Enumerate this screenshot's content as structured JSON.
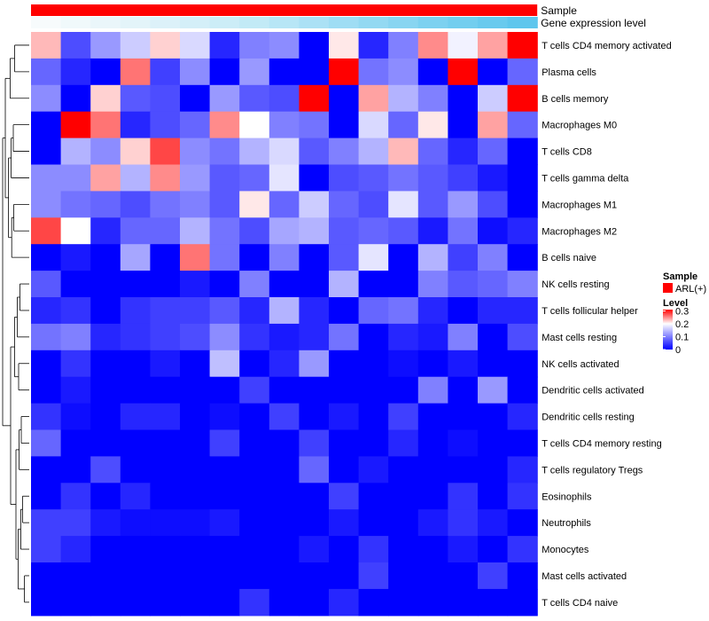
{
  "chart_data": {
    "type": "heatmap",
    "title": "",
    "annotation_labels": {
      "sample": "Sample",
      "gene": "Gene expression level"
    },
    "sample_group": "ARL(+)",
    "sample_color": "#ff0000",
    "gene_expression_gradient": [
      "#f7fbfc",
      "#e2f3f9",
      "#c9ecf7",
      "#a4dff4",
      "#7ed2f0",
      "#5fc6ed"
    ],
    "rows": [
      "T cells CD4 memory activated",
      "Plasma cells",
      "B cells memory",
      "Macrophages M0",
      "T cells CD8",
      "T cells gamma delta",
      "Macrophages M1",
      "Macrophages M2",
      "B cells naive",
      "NK cells resting",
      "T cells follicular helper",
      "Mast cells resting",
      "NK cells activated",
      "Dendritic cells activated",
      "Dendritic cells resting",
      "T cells CD4 memory resting",
      "T cells regulatory  Tregs",
      "Eosinophils",
      "Neutrophils",
      "Monocytes",
      "Mast cells activated",
      "T cells CD4 naive"
    ],
    "values": [
      [
        0.23,
        0.06,
        0.12,
        0.16,
        0.22,
        0.17,
        0.03,
        0.1,
        0.11,
        0.0,
        0.21,
        0.03,
        0.1,
        0.25,
        0.19,
        0.24,
        0.31
      ],
      [
        0.08,
        0.03,
        0.0,
        0.26,
        0.05,
        0.11,
        0.0,
        0.12,
        0.0,
        0.0,
        0.31,
        0.09,
        0.11,
        0.0,
        0.31,
        0.0,
        0.08
      ],
      [
        0.11,
        0.0,
        0.22,
        0.07,
        0.06,
        0.0,
        0.12,
        0.07,
        0.06,
        0.31,
        0.0,
        0.24,
        0.14,
        0.1,
        0.0,
        0.16,
        0.31
      ],
      [
        0.0,
        0.31,
        0.26,
        0.03,
        0.06,
        0.08,
        0.25,
        0.2,
        0.1,
        0.09,
        0.0,
        0.17,
        0.08,
        0.21,
        0.0,
        0.24,
        0.08
      ],
      [
        0.0,
        0.14,
        0.11,
        0.22,
        0.28,
        0.11,
        0.09,
        0.14,
        0.17,
        0.07,
        0.1,
        0.14,
        0.23,
        0.08,
        0.03,
        0.08,
        0.0
      ],
      [
        0.11,
        0.11,
        0.24,
        0.14,
        0.25,
        0.12,
        0.07,
        0.08,
        0.18,
        0.0,
        0.06,
        0.07,
        0.09,
        0.07,
        0.05,
        0.02,
        0.0
      ],
      [
        0.11,
        0.09,
        0.08,
        0.06,
        0.09,
        0.1,
        0.07,
        0.21,
        0.08,
        0.16,
        0.08,
        0.06,
        0.18,
        0.07,
        0.12,
        0.06,
        0.0
      ],
      [
        0.28,
        0.2,
        0.03,
        0.08,
        0.08,
        0.14,
        0.09,
        0.06,
        0.13,
        0.14,
        0.07,
        0.08,
        0.07,
        0.02,
        0.09,
        0.01,
        0.03
      ],
      [
        0.0,
        0.02,
        0.0,
        0.13,
        0.0,
        0.26,
        0.09,
        0.0,
        0.1,
        0.0,
        0.07,
        0.18,
        0.0,
        0.14,
        0.05,
        0.1,
        0.0
      ],
      [
        0.07,
        0.0,
        0.0,
        0.0,
        0.0,
        0.02,
        0.0,
        0.1,
        0.0,
        0.0,
        0.14,
        0.0,
        0.0,
        0.1,
        0.07,
        0.08,
        0.1
      ],
      [
        0.03,
        0.04,
        0.0,
        0.04,
        0.05,
        0.05,
        0.07,
        0.03,
        0.14,
        0.03,
        0.0,
        0.08,
        0.09,
        0.03,
        0.0,
        0.03,
        0.03
      ],
      [
        0.09,
        0.1,
        0.03,
        0.04,
        0.05,
        0.06,
        0.11,
        0.04,
        0.02,
        0.03,
        0.09,
        0.0,
        0.03,
        0.02,
        0.1,
        0.0,
        0.06
      ],
      [
        0.0,
        0.04,
        0.0,
        0.0,
        0.02,
        0.0,
        0.15,
        0.0,
        0.03,
        0.12,
        0.0,
        0.0,
        0.01,
        0.0,
        0.02,
        0.0,
        0.0
      ],
      [
        0.0,
        0.02,
        0.0,
        0.0,
        0.0,
        0.0,
        0.0,
        0.05,
        0.0,
        0.0,
        0.0,
        0.0,
        0.0,
        0.1,
        0.0,
        0.12,
        0.0
      ],
      [
        0.04,
        0.01,
        0.0,
        0.03,
        0.03,
        0.0,
        0.01,
        0.0,
        0.05,
        0.0,
        0.02,
        0.0,
        0.05,
        0.0,
        0.0,
        0.0,
        0.03
      ],
      [
        0.08,
        0.0,
        0.0,
        0.0,
        0.0,
        0.0,
        0.05,
        0.0,
        0.0,
        0.05,
        0.0,
        0.0,
        0.03,
        0.0,
        0.01,
        0.0,
        0.0
      ],
      [
        0.0,
        0.0,
        0.06,
        0.0,
        0.0,
        0.0,
        0.0,
        0.0,
        0.0,
        0.08,
        0.0,
        0.02,
        0.0,
        0.0,
        0.0,
        0.0,
        0.03
      ],
      [
        0.0,
        0.04,
        0.0,
        0.03,
        0.0,
        0.0,
        0.0,
        0.0,
        0.0,
        0.0,
        0.05,
        0.0,
        0.0,
        0.0,
        0.04,
        0.0,
        0.04
      ],
      [
        0.05,
        0.05,
        0.02,
        0.01,
        0.01,
        0.01,
        0.02,
        0.0,
        0.0,
        0.0,
        0.02,
        0.0,
        0.0,
        0.02,
        0.04,
        0.02,
        0.0
      ],
      [
        0.05,
        0.03,
        0.0,
        0.0,
        0.0,
        0.0,
        0.0,
        0.0,
        0.0,
        0.02,
        0.0,
        0.04,
        0.0,
        0.0,
        0.02,
        0.0,
        0.04
      ],
      [
        0.0,
        0.0,
        0.0,
        0.0,
        0.0,
        0.0,
        0.0,
        0.0,
        0.0,
        0.0,
        0.0,
        0.05,
        0.0,
        0.0,
        0.0,
        0.05,
        0.0
      ],
      [
        0.0,
        0.0,
        0.0,
        0.0,
        0.0,
        0.0,
        0.0,
        0.04,
        0.0,
        0.0,
        0.03,
        0.0,
        0.0,
        0.0,
        0.0,
        0.0,
        0.0
      ]
    ],
    "color_scale": {
      "min": 0,
      "mid": 0.2,
      "max": 0.31,
      "low": "#0000ff",
      "mid_color": "#ffffff",
      "high": "#ff0000"
    },
    "legend": {
      "sample_title": "Sample",
      "sample_entry": "ARL(+)",
      "level_title": "Level",
      "level_ticks": [
        0.3,
        0.2,
        0.1,
        0
      ],
      "placement": "right"
    },
    "row_dendrogram": true
  }
}
